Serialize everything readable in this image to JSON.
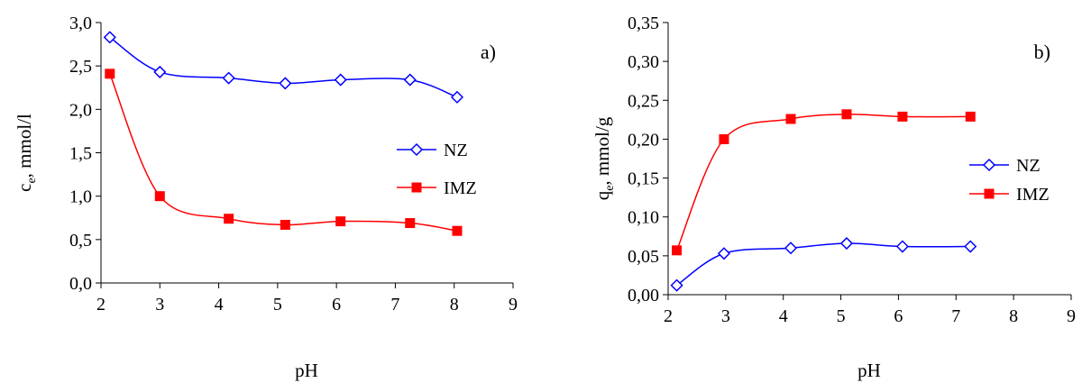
{
  "chart_data": [
    {
      "type": "line",
      "panel_label": "a)",
      "xlabel": "pH",
      "ylabel_main": "c",
      "ylabel_sub": "e",
      "ylabel_rest": ", mmol/l",
      "xlim": [
        2,
        9
      ],
      "ylim": [
        0,
        3
      ],
      "xticks": [
        2,
        3,
        4,
        5,
        6,
        7,
        8,
        9
      ],
      "xtick_labels": [
        "2",
        "3",
        "4",
        "5",
        "6",
        "7",
        "8",
        "9"
      ],
      "yticks": [
        0,
        0.5,
        1,
        1.5,
        2,
        2.5,
        3
      ],
      "ytick_labels": [
        "0,0",
        "0,5",
        "1,0",
        "1,5",
        "2,0",
        "2,5",
        "3,0"
      ],
      "grid": false,
      "legend_position": "middle-right",
      "series": [
        {
          "name": "NZ",
          "color": "#0000ff",
          "marker": "open-diamond",
          "x": [
            2.15,
            3.0,
            4.17,
            5.13,
            6.07,
            7.25,
            8.05
          ],
          "y": [
            2.83,
            2.43,
            2.36,
            2.3,
            2.34,
            2.34,
            2.14
          ]
        },
        {
          "name": "IMZ",
          "color": "#ff0000",
          "marker": "filled-square",
          "x": [
            2.15,
            3.0,
            4.17,
            5.13,
            6.07,
            7.25,
            8.05
          ],
          "y": [
            2.41,
            1.0,
            0.74,
            0.67,
            0.71,
            0.69,
            0.6
          ]
        }
      ]
    },
    {
      "type": "line",
      "panel_label": "b)",
      "xlabel": "pH",
      "ylabel_main": "q",
      "ylabel_sub": "e",
      "ylabel_rest": ", mmol/g",
      "xlim": [
        2,
        9
      ],
      "ylim": [
        0,
        0.35
      ],
      "xticks": [
        2,
        3,
        4,
        5,
        6,
        7,
        8,
        9
      ],
      "xtick_labels": [
        "2",
        "3",
        "4",
        "5",
        "6",
        "7",
        "8",
        "9"
      ],
      "yticks": [
        0,
        0.05,
        0.1,
        0.15,
        0.2,
        0.25,
        0.3,
        0.35
      ],
      "ytick_labels": [
        "0,00",
        "0,05",
        "0,10",
        "0,15",
        "0,20",
        "0,25",
        "0,30",
        "0,35"
      ],
      "grid": false,
      "legend_position": "middle-right",
      "series": [
        {
          "name": "NZ",
          "color": "#0000ff",
          "marker": "open-diamond",
          "x": [
            2.15,
            2.97,
            4.13,
            5.1,
            6.07,
            7.25
          ],
          "y": [
            0.012,
            0.053,
            0.06,
            0.066,
            0.062,
            0.062
          ]
        },
        {
          "name": "IMZ",
          "color": "#ff0000",
          "marker": "filled-square",
          "x": [
            2.15,
            2.97,
            4.13,
            5.1,
            6.07,
            7.25
          ],
          "y": [
            0.057,
            0.2,
            0.226,
            0.232,
            0.229,
            0.229
          ]
        }
      ]
    }
  ]
}
